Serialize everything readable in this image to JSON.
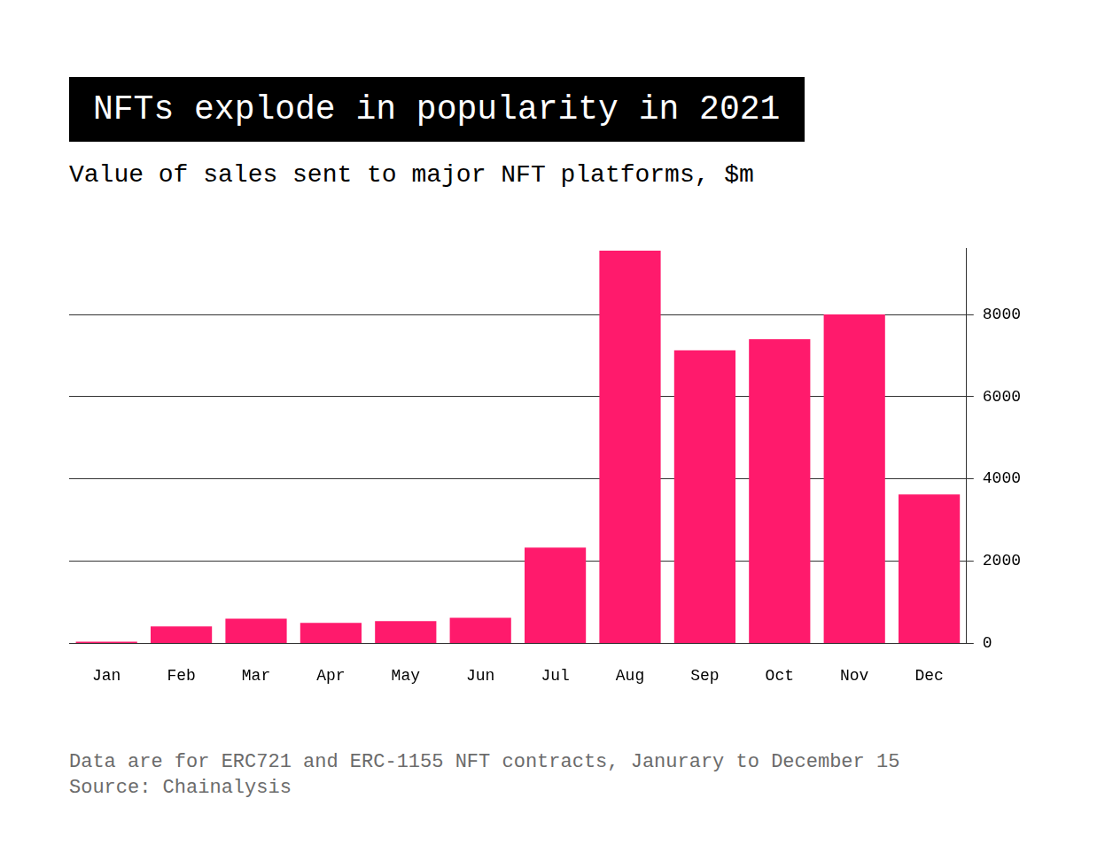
{
  "chart_data": {
    "type": "bar",
    "title": "NFTs explode in popularity in 2021",
    "subtitle": "Value of sales sent to major NFT platforms, $m",
    "annotations": [
      "Data are for ERC721 and ERC-1155 NFT contracts, Janurary to December 15",
      "Source: Chainalysis"
    ],
    "categories": [
      "Jan",
      "Feb",
      "Mar",
      "Apr",
      "May",
      "Jun",
      "Jul",
      "Aug",
      "Sep",
      "Oct",
      "Nov",
      "Dec"
    ],
    "values": [
      40,
      410,
      600,
      500,
      540,
      620,
      2330,
      9550,
      7130,
      7400,
      8000,
      3620
    ],
    "color": "#ff1a6c",
    "ylim": [
      0,
      9600
    ],
    "yticks": [
      0,
      2000,
      4000,
      6000,
      8000
    ],
    "grid": true
  }
}
